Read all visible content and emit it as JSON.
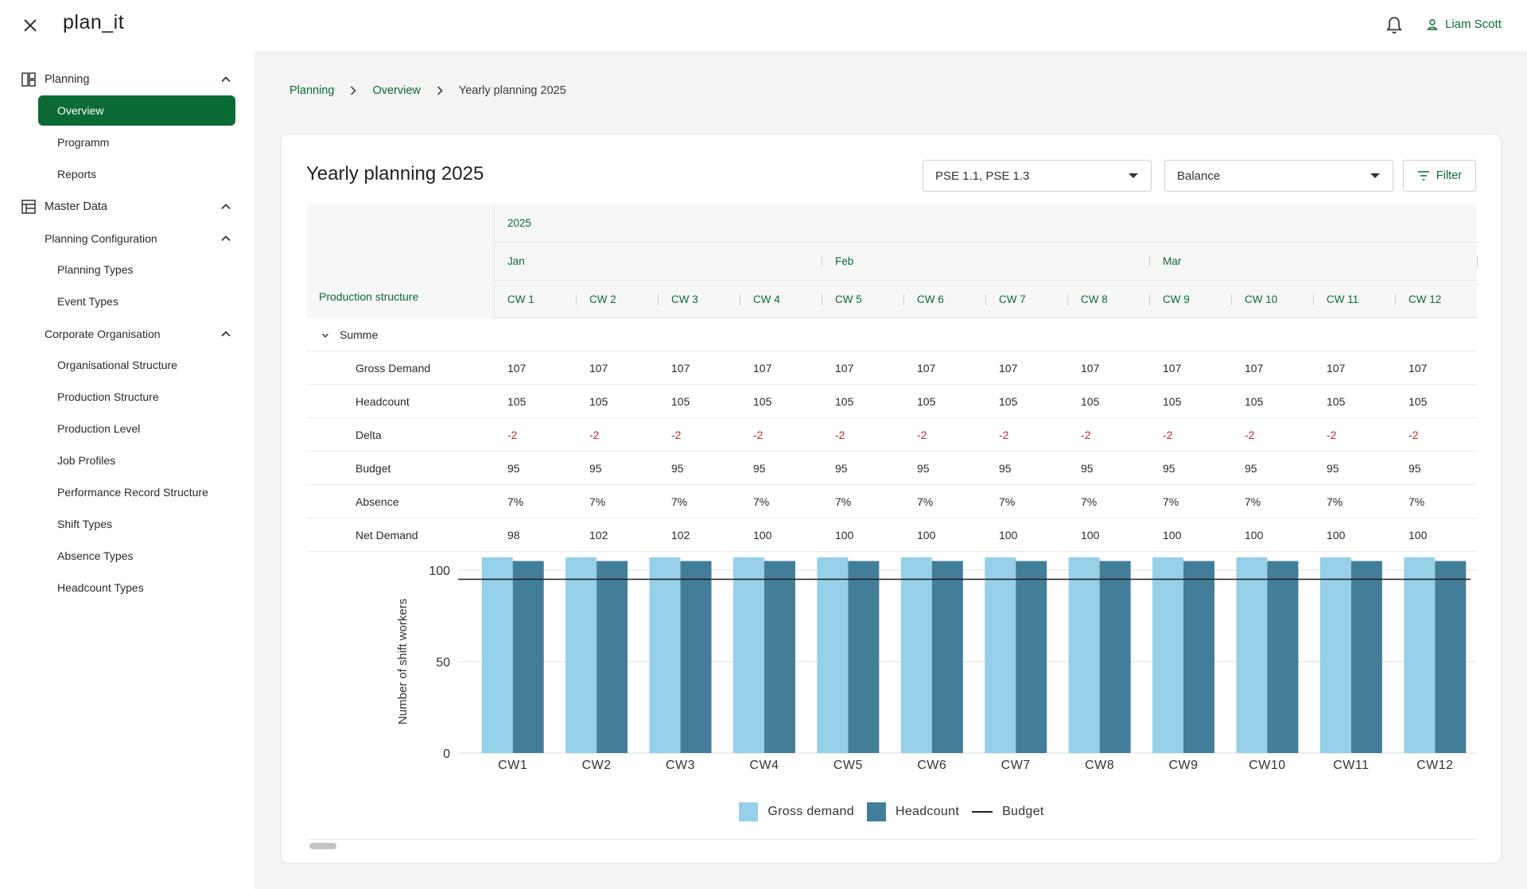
{
  "app": {
    "logo": "plan_it",
    "user_name": "Liam Scott"
  },
  "sidebar": {
    "groups": [
      {
        "label": "Planning",
        "items": [
          "Overview",
          "Programm",
          "Reports"
        ],
        "active": "Overview"
      },
      {
        "label": "Master Data"
      }
    ],
    "planning_configuration": {
      "label": "Planning Configuration",
      "items": [
        "Planning Types",
        "Event Types"
      ]
    },
    "corporate_organisation": {
      "label": "Corporate Organisation",
      "items": [
        "Organisational Structure",
        "Production Structure",
        "Production Level",
        "Job Profiles",
        "Performance Record Structure",
        "Shift Types",
        "Absence Types",
        "Headcount Types"
      ]
    }
  },
  "breadcrumb": {
    "items": [
      "Planning",
      "Overview"
    ],
    "current": "Yearly planning 2025"
  },
  "page": {
    "title": "Yearly planning 2025",
    "select_production": "PSE 1.1, PSE 1.3",
    "select_view": "Balance",
    "filter_label": "Filter"
  },
  "table": {
    "corner_label": "Production structure",
    "year": "2025",
    "months": [
      "Jan",
      "Feb",
      "Mar"
    ],
    "weeks": [
      "CW 1",
      "CW 2",
      "CW 3",
      "CW 4",
      "CW 5",
      "CW 6",
      "CW 7",
      "CW 8",
      "CW 9",
      "CW 10",
      "CW 11",
      "CW 12"
    ],
    "group_label": "Summe",
    "rows": [
      {
        "label": "Gross Demand",
        "values": [
          "107",
          "107",
          "107",
          "107",
          "107",
          "107",
          "107",
          "107",
          "107",
          "107",
          "107",
          "107"
        ]
      },
      {
        "label": "Headcount",
        "values": [
          "105",
          "105",
          "105",
          "105",
          "105",
          "105",
          "105",
          "105",
          "105",
          "105",
          "105",
          "105"
        ]
      },
      {
        "label": "Delta",
        "values": [
          "-2",
          "-2",
          "-2",
          "-2",
          "-2",
          "-2",
          "-2",
          "-2",
          "-2",
          "-2",
          "-2",
          "-2"
        ],
        "negative": true
      },
      {
        "label": "Budget",
        "values": [
          "95",
          "95",
          "95",
          "95",
          "95",
          "95",
          "95",
          "95",
          "95",
          "95",
          "95",
          "95"
        ]
      },
      {
        "label": "Absence",
        "values": [
          "7%",
          "7%",
          "7%",
          "7%",
          "7%",
          "7%",
          "7%",
          "7%",
          "7%",
          "7%",
          "7%",
          "7%"
        ]
      },
      {
        "label": "Net Demand",
        "values": [
          "98",
          "102",
          "102",
          "100",
          "100",
          "100",
          "100",
          "100",
          "100",
          "100",
          "100",
          "100"
        ]
      }
    ]
  },
  "chart_data": {
    "type": "bar",
    "categories": [
      "CW1",
      "CW2",
      "CW3",
      "CW4",
      "CW5",
      "CW6",
      "CW7",
      "CW8",
      "CW9",
      "CW10",
      "CW11",
      "CW12"
    ],
    "series": [
      {
        "name": "Gross demand",
        "color": "#96cfe8",
        "values": [
          107,
          107,
          107,
          107,
          107,
          107,
          107,
          107,
          107,
          107,
          107,
          107
        ]
      },
      {
        "name": "Headcount",
        "color": "#437e99",
        "values": [
          105,
          105,
          105,
          105,
          105,
          105,
          105,
          105,
          105,
          105,
          105,
          105
        ]
      }
    ],
    "line": {
      "name": "Budget",
      "color": "#1f1f1f",
      "value": 95
    },
    "ylabel": "Number of shift workers",
    "yticks": [
      0,
      50,
      100
    ],
    "ylim": [
      0,
      100
    ],
    "grid": true,
    "legend": "bottom"
  }
}
